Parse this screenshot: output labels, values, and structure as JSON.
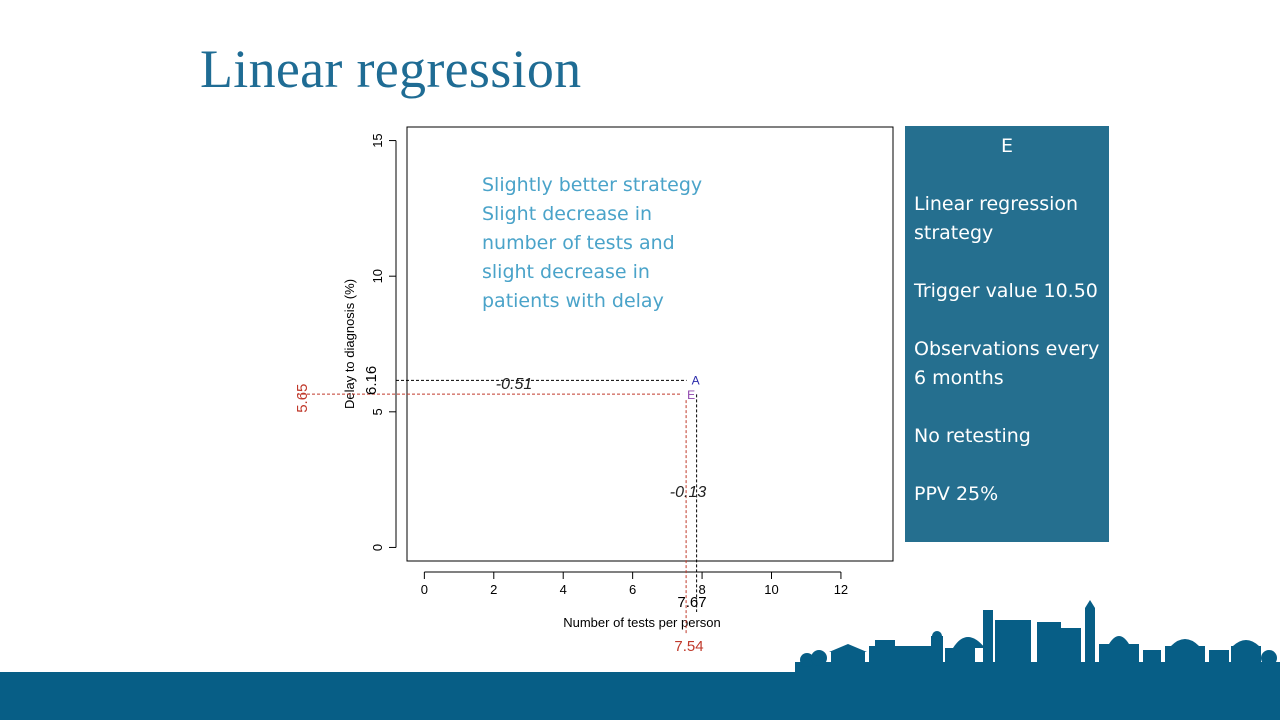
{
  "slide": {
    "title": "Linear regression"
  },
  "panel": {
    "heading": "E",
    "blocks": [
      "Linear regression strategy",
      "Trigger value 10.50",
      "Observations every 6 months",
      "No retesting",
      "PPV 25%"
    ]
  },
  "colors": {
    "title": "#1f6c94",
    "panel": "#256f8f",
    "footer": "#075e86",
    "annotation": "#4aa3c9",
    "red": "#c0392b",
    "pointA": "#2a2aaa",
    "pointE": "#8e44ad"
  },
  "chart_data": {
    "type": "scatter",
    "xlabel": "Number of tests per person",
    "ylabel": "Delay to diagnosis (%)",
    "xlim": [
      -0.5,
      13.5
    ],
    "ylim": [
      -0.5,
      15.5
    ],
    "xticks": [
      0,
      2,
      4,
      6,
      8,
      10,
      12
    ],
    "yticks": [
      0,
      5,
      10,
      15
    ],
    "grid": false,
    "points": [
      {
        "label": "A",
        "x": 7.67,
        "y": 6.16
      },
      {
        "label": "E",
        "x": 7.54,
        "y": 5.65
      }
    ],
    "reference_values": {
      "A": {
        "x_text": "7.67",
        "y_text": "6.16"
      },
      "E": {
        "x_text": "7.54",
        "y_text": "5.65"
      }
    },
    "differences": {
      "y": "-0.51",
      "x": "-0.13"
    },
    "annotation_lines": [
      "Slightly better strategy",
      "Slight decrease in",
      "number of tests and",
      "slight decrease in",
      "patients with delay"
    ]
  }
}
